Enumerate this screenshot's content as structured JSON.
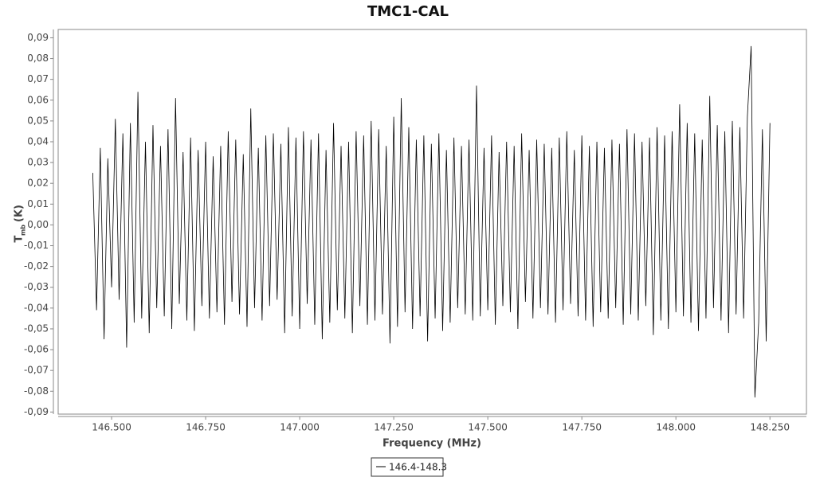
{
  "chart_data": {
    "type": "line",
    "title": "TMC1-CAL",
    "x_label": "Frequency (MHz)",
    "y_label": "T",
    "y_label_sub": "mb",
    "y_label_unit": "(K)",
    "xlim": [
      146.358,
      148.347
    ],
    "ylim": [
      -0.091,
      0.094
    ],
    "xticks": [
      {
        "value": 146.5,
        "label": "146.500"
      },
      {
        "value": 146.75,
        "label": "146.750"
      },
      {
        "value": 147,
        "label": "147.000"
      },
      {
        "value": 147.25,
        "label": "147.250"
      },
      {
        "value": 147.5,
        "label": "147.500"
      },
      {
        "value": 147.75,
        "label": "147.750"
      },
      {
        "value": 148,
        "label": "148.000"
      },
      {
        "value": 148.25,
        "label": "148.250"
      }
    ],
    "yticks": [
      {
        "value": 0.09,
        "label": "0,09"
      },
      {
        "value": 0.08,
        "label": "0,08"
      },
      {
        "value": 0.07,
        "label": "0,07"
      },
      {
        "value": 0.06,
        "label": "0,06"
      },
      {
        "value": 0.05,
        "label": "0,05"
      },
      {
        "value": 0.04,
        "label": "0,04"
      },
      {
        "value": 0.03,
        "label": "0,03"
      },
      {
        "value": 0.02,
        "label": "0,02"
      },
      {
        "value": 0.01,
        "label": "0,01"
      },
      {
        "value": 0,
        "label": "0,00"
      },
      {
        "value": -0.01,
        "label": "-0,01"
      },
      {
        "value": -0.02,
        "label": "-0,02"
      },
      {
        "value": -0.03,
        "label": "-0,03"
      },
      {
        "value": -0.04,
        "label": "-0,04"
      },
      {
        "value": -0.05,
        "label": "-0,05"
      },
      {
        "value": -0.06,
        "label": "-0,06"
      },
      {
        "value": -0.07,
        "label": "-0,07"
      },
      {
        "value": -0.08,
        "label": "-0,08"
      },
      {
        "value": -0.09,
        "label": "-0,09"
      }
    ],
    "x": [
      146.45,
      146.46,
      146.47,
      146.48,
      146.49,
      146.5,
      146.51,
      146.52,
      146.53,
      146.54,
      146.55,
      146.56,
      146.57,
      146.58,
      146.59,
      146.6,
      146.61,
      146.62,
      146.63,
      146.64,
      146.65,
      146.66,
      146.67,
      146.68,
      146.69,
      146.7,
      146.71,
      146.72,
      146.73,
      146.74,
      146.75,
      146.76,
      146.77,
      146.78,
      146.79,
      146.8,
      146.81,
      146.82,
      146.83,
      146.84,
      146.85,
      146.86,
      146.87,
      146.88,
      146.89,
      146.9,
      146.91,
      146.92,
      146.93,
      146.94,
      146.95,
      146.96,
      146.97,
      146.98,
      146.99,
      147,
      147.01,
      147.02,
      147.03,
      147.04,
      147.05,
      147.06,
      147.07,
      147.08,
      147.09,
      147.1,
      147.11,
      147.12,
      147.13,
      147.14,
      147.15,
      147.16,
      147.17,
      147.18,
      147.19,
      147.2,
      147.21,
      147.22,
      147.23,
      147.24,
      147.25,
      147.26,
      147.27,
      147.28,
      147.29,
      147.3,
      147.31,
      147.32,
      147.33,
      147.34,
      147.35,
      147.36,
      147.37,
      147.38,
      147.39,
      147.4,
      147.41,
      147.42,
      147.43,
      147.44,
      147.45,
      147.46,
      147.47,
      147.48,
      147.49,
      147.5,
      147.51,
      147.52,
      147.53,
      147.54,
      147.55,
      147.56,
      147.57,
      147.58,
      147.59,
      147.6,
      147.61,
      147.62,
      147.63,
      147.64,
      147.65,
      147.66,
      147.67,
      147.68,
      147.69,
      147.7,
      147.71,
      147.72,
      147.73,
      147.74,
      147.75,
      147.76,
      147.77,
      147.78,
      147.79,
      147.8,
      147.81,
      147.82,
      147.83,
      147.84,
      147.85,
      147.86,
      147.87,
      147.88,
      147.89,
      147.9,
      147.91,
      147.92,
      147.93,
      147.94,
      147.95,
      147.96,
      147.97,
      147.98,
      147.99,
      148,
      148.01,
      148.02,
      148.03,
      148.04,
      148.05,
      148.06,
      148.07,
      148.08,
      148.09,
      148.1,
      148.11,
      148.12,
      148.13,
      148.14,
      148.15,
      148.16,
      148.17,
      148.18,
      148.19,
      148.2,
      148.21,
      148.22,
      148.23,
      148.24,
      148.25
    ],
    "series": [
      {
        "name": "146.4-148.3",
        "color": "#000000",
        "values": [
          0.025,
          -0.041,
          0.037,
          -0.055,
          0.032,
          -0.03,
          0.051,
          -0.036,
          0.044,
          -0.059,
          0.049,
          -0.047,
          0.064,
          -0.045,
          0.04,
          -0.052,
          0.048,
          -0.04,
          0.038,
          -0.044,
          0.046,
          -0.05,
          0.061,
          -0.038,
          0.035,
          -0.046,
          0.042,
          -0.051,
          0.036,
          -0.039,
          0.04,
          -0.045,
          0.033,
          -0.042,
          0.038,
          -0.048,
          0.045,
          -0.037,
          0.041,
          -0.043,
          0.034,
          -0.049,
          0.056,
          -0.04,
          0.037,
          -0.046,
          0.043,
          -0.039,
          0.044,
          -0.036,
          0.039,
          -0.052,
          0.047,
          -0.044,
          0.042,
          -0.05,
          0.045,
          -0.038,
          0.041,
          -0.048,
          0.044,
          -0.055,
          0.036,
          -0.047,
          0.049,
          -0.041,
          0.038,
          -0.045,
          0.04,
          -0.052,
          0.045,
          -0.039,
          0.043,
          -0.048,
          0.05,
          -0.046,
          0.046,
          -0.043,
          0.038,
          -0.057,
          0.052,
          -0.049,
          0.061,
          -0.042,
          0.047,
          -0.05,
          0.041,
          -0.044,
          0.043,
          -0.056,
          0.039,
          -0.045,
          0.044,
          -0.051,
          0.036,
          -0.047,
          0.042,
          -0.04,
          0.038,
          -0.043,
          0.041,
          -0.046,
          0.067,
          -0.044,
          0.037,
          -0.041,
          0.043,
          -0.048,
          0.035,
          -0.039,
          0.04,
          -0.042,
          0.038,
          -0.05,
          0.044,
          -0.037,
          0.036,
          -0.045,
          0.041,
          -0.04,
          0.039,
          -0.043,
          0.037,
          -0.047,
          0.042,
          -0.041,
          0.045,
          -0.038,
          0.036,
          -0.044,
          0.043,
          -0.046,
          0.038,
          -0.049,
          0.04,
          -0.042,
          0.037,
          -0.045,
          0.041,
          -0.04,
          0.039,
          -0.048,
          0.046,
          -0.043,
          0.044,
          -0.046,
          0.04,
          -0.039,
          0.042,
          -0.053,
          0.047,
          -0.046,
          0.043,
          -0.05,
          0.045,
          -0.042,
          0.058,
          -0.044,
          0.049,
          -0.047,
          0.044,
          -0.051,
          0.041,
          -0.045,
          0.062,
          -0.04,
          0.048,
          -0.046,
          0.045,
          -0.052,
          0.05,
          -0.043,
          0.047,
          -0.045,
          0.052,
          0.086,
          -0.083,
          -0.047,
          0.046,
          -0.056,
          0.049
        ]
      }
    ]
  }
}
